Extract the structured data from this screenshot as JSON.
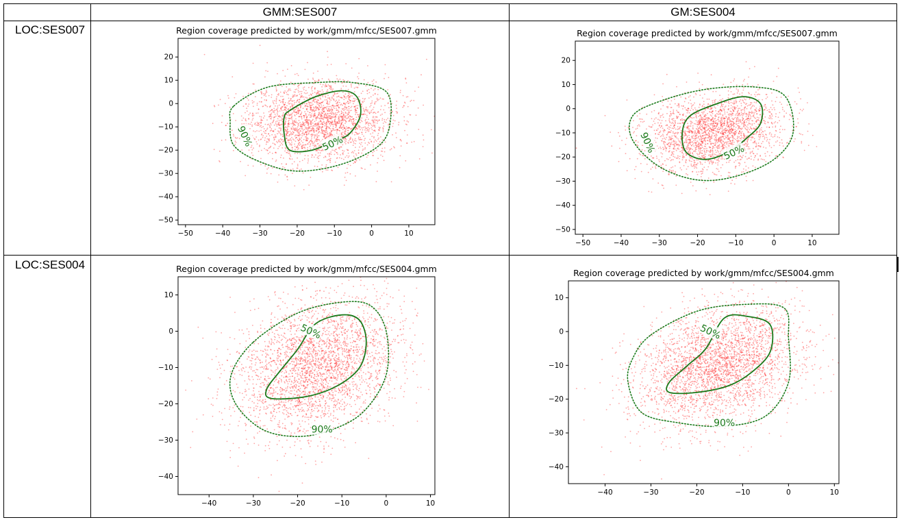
{
  "table": {
    "col_headers": [
      "GMM:SES007",
      "GM:SES004"
    ],
    "row_headers": [
      "LOC:SES007",
      "LOC:SES004"
    ]
  },
  "colors": {
    "points": "#ff3333",
    "contour": "#1a7a1a",
    "frame": "#000000"
  },
  "chart_data": [
    {
      "type": "scatter",
      "title": "Region coverage predicted by work/gmm/mfcc/SES007.gmm",
      "xlabel": "",
      "ylabel": "",
      "xlim": [
        -52,
        17
      ],
      "ylim": [
        -52,
        28
      ],
      "xticks": [
        -50,
        -40,
        -30,
        -20,
        -10,
        0,
        10
      ],
      "yticks": [
        -50,
        -40,
        -30,
        -20,
        -10,
        0,
        10,
        20
      ],
      "grid": false,
      "scatter": {
        "center": [
          -14,
          -8
        ],
        "sd": [
          10,
          9
        ],
        "corr": 0.05,
        "count": 2600,
        "seed": 11
      },
      "contours": [
        {
          "label": "50%",
          "style": "solid",
          "points": [
            [
              -22,
              -3
            ],
            [
              -15,
              3
            ],
            [
              -8,
              5.5
            ],
            [
              -4,
              3
            ],
            [
              -3,
              -5
            ],
            [
              -6,
              -13
            ],
            [
              -10,
              -16
            ],
            [
              -16,
              -20
            ],
            [
              -22,
              -20
            ],
            [
              -23.5,
              -13
            ],
            [
              -23.5,
              -6
            ]
          ],
          "label_at": [
            -10.5,
            -17
          ],
          "label_rot": -25
        },
        {
          "label": "90%",
          "style": "dotted",
          "points": [
            [
              -37,
              -1
            ],
            [
              -28,
              7
            ],
            [
              -15,
              9
            ],
            [
              -5,
              9
            ],
            [
              4,
              5
            ],
            [
              5,
              -8
            ],
            [
              2,
              -18
            ],
            [
              -8,
              -26
            ],
            [
              -20,
              -29
            ],
            [
              -30,
              -25
            ],
            [
              -37,
              -18
            ],
            [
              -38,
              -8
            ]
          ],
          "label_at": [
            -34,
            -14
          ],
          "label_rot": 65
        }
      ]
    },
    {
      "type": "scatter",
      "title": "Region coverage predicted by work/gmm/mfcc/SES007.gmm",
      "xlabel": "",
      "ylabel": "",
      "xlim": [
        -52,
        17
      ],
      "ylim": [
        -52,
        28
      ],
      "xticks": [
        -50,
        -40,
        -30,
        -20,
        -10,
        0,
        10
      ],
      "yticks": [
        -50,
        -40,
        -30,
        -20,
        -10,
        0,
        10,
        20
      ],
      "grid": false,
      "scatter": {
        "center": [
          -16,
          -10
        ],
        "sd": [
          9,
          8
        ],
        "corr": 0.2,
        "count": 2400,
        "seed": 23
      },
      "contours": [
        {
          "label": "50%",
          "style": "solid",
          "points": [
            [
              -22,
              -3
            ],
            [
              -15,
              2
            ],
            [
              -8,
              5
            ],
            [
              -3.5,
              2
            ],
            [
              -3.5,
              -6
            ],
            [
              -7,
              -12
            ],
            [
              -12,
              -18
            ],
            [
              -18,
              -21
            ],
            [
              -23,
              -18
            ],
            [
              -24,
              -10
            ]
          ],
          "label_at": [
            -10.5,
            -18
          ],
          "label_rot": -25
        },
        {
          "label": "90%",
          "style": "dotted",
          "points": [
            [
              -37,
              -3
            ],
            [
              -30,
              3
            ],
            [
              -18,
              8
            ],
            [
              -5,
              9
            ],
            [
              3,
              5
            ],
            [
              5,
              -10
            ],
            [
              0,
              -21
            ],
            [
              -10,
              -28
            ],
            [
              -20,
              -29.5
            ],
            [
              -30,
              -24
            ],
            [
              -37,
              -13
            ]
          ],
          "label_at": [
            -33,
            -14
          ],
          "label_rot": 65
        }
      ]
    },
    {
      "type": "scatter",
      "title": "Region coverage predicted by work/gmm/mfcc/SES004.gmm",
      "xlabel": "",
      "ylabel": "",
      "xlim": [
        -47,
        11
      ],
      "ylim": [
        -45,
        15
      ],
      "xticks": [
        -40,
        -30,
        -20,
        -10,
        0,
        10
      ],
      "yticks": [
        -40,
        -30,
        -20,
        -10,
        0,
        10
      ],
      "grid": false,
      "scatter": {
        "center": [
          -16,
          -10
        ],
        "sd": [
          9,
          9.5
        ],
        "corr": 0.25,
        "count": 3000,
        "seed": 37
      },
      "contours": [
        {
          "label": "50%",
          "style": "solid",
          "points": [
            [
              -16,
              2
            ],
            [
              -10,
              4.5
            ],
            [
              -6,
              3
            ],
            [
              -4.5,
              -3
            ],
            [
              -6,
              -10
            ],
            [
              -11,
              -15
            ],
            [
              -18,
              -18
            ],
            [
              -26,
              -18.5
            ],
            [
              -27,
              -16
            ],
            [
              -24,
              -11
            ],
            [
              -20,
              -5
            ]
          ],
          "label_at": [
            -17,
            0
          ],
          "label_rot": 25
        },
        {
          "label": "90%",
          "style": "dotted",
          "points": [
            [
              -30,
              -3
            ],
            [
              -20,
              5
            ],
            [
              -10,
              8
            ],
            [
              -3.5,
              7
            ],
            [
              0,
              0
            ],
            [
              0,
              -12
            ],
            [
              -5,
              -22
            ],
            [
              -12,
              -27
            ],
            [
              -20,
              -29
            ],
            [
              -28,
              -27
            ],
            [
              -34,
              -20
            ],
            [
              -35,
              -12
            ]
          ],
          "label_at": [
            -14.5,
            -27
          ],
          "label_rot": 0
        }
      ]
    },
    {
      "type": "scatter",
      "title": "Region coverage predicted by work/gmm/mfcc/SES004.gmm",
      "xlabel": "",
      "ylabel": "",
      "xlim": [
        -48,
        11
      ],
      "ylim": [
        -45,
        15
      ],
      "xticks": [
        -40,
        -30,
        -20,
        -10,
        0,
        10
      ],
      "yticks": [
        -40,
        -30,
        -20,
        -10,
        0,
        10
      ],
      "grid": false,
      "scatter": {
        "center": [
          -15,
          -10
        ],
        "sd": [
          9,
          9
        ],
        "corr": 0.3,
        "count": 3000,
        "seed": 53
      },
      "contours": [
        {
          "label": "50%",
          "style": "solid",
          "points": [
            [
              -14,
              4
            ],
            [
              -9,
              4.5
            ],
            [
              -4,
              2
            ],
            [
              -4,
              -6
            ],
            [
              -8,
              -12
            ],
            [
              -13,
              -16
            ],
            [
              -20,
              -18
            ],
            [
              -26,
              -18
            ],
            [
              -26,
              -15
            ],
            [
              -22,
              -10
            ],
            [
              -18,
              -5
            ]
          ],
          "label_at": [
            -17,
            0
          ],
          "label_rot": 25
        },
        {
          "label": "90%",
          "style": "dotted",
          "points": [
            [
              -30,
              -1
            ],
            [
              -20,
              6
            ],
            [
              -10,
              8
            ],
            [
              -1,
              7
            ],
            [
              0,
              -2
            ],
            [
              0,
              -15
            ],
            [
              -5,
              -25
            ],
            [
              -14,
              -28
            ],
            [
              -24,
              -27
            ],
            [
              -32,
              -24
            ],
            [
              -35,
              -15
            ],
            [
              -34,
              -8
            ]
          ],
          "label_at": [
            -14,
            -27
          ],
          "label_rot": 0
        }
      ]
    }
  ]
}
